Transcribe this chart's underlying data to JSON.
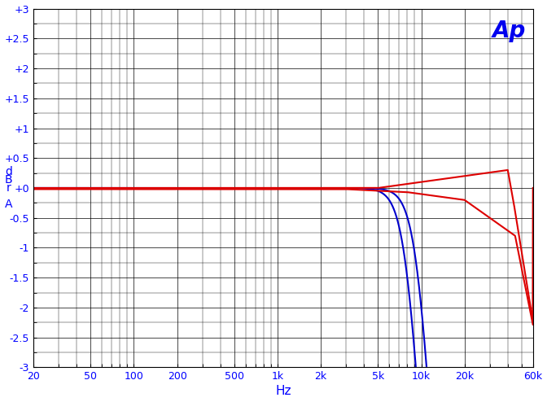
{
  "xlabel": "Hz",
  "xlim": [
    20,
    60000
  ],
  "ylim": [
    -3,
    3
  ],
  "yticks": [
    -3,
    -2.5,
    -2,
    -1.5,
    -1,
    -0.5,
    0,
    0.5,
    1,
    1.5,
    2,
    2.5,
    3
  ],
  "ytick_labels": [
    "-3",
    "-2.5",
    "-2",
    "-1.5",
    "-1",
    "-0.5",
    "+0",
    "+0.5",
    "+1",
    "+1.5",
    "+2",
    "+2.5",
    "+3"
  ],
  "xtick_labels": [
    "20",
    "50",
    "100",
    "200",
    "500",
    "1k",
    "2k",
    "5k",
    "10k",
    "20k",
    "60k"
  ],
  "xtick_values": [
    20,
    50,
    100,
    200,
    500,
    1000,
    2000,
    5000,
    10000,
    20000,
    60000
  ],
  "bg_color": "#ffffff",
  "grid_color": "#000000",
  "ap_text": "Ap",
  "ap_color": "#0000ee",
  "blue_color": "#0000cc",
  "red_color": "#dd0000",
  "line_width": 1.5,
  "ylabel_chars": [
    "d",
    "B",
    "r",
    "A"
  ],
  "blue_f0_1": 9500,
  "blue_n1": 4.0,
  "blue_f0_2": 8000,
  "blue_n2": 4.0
}
